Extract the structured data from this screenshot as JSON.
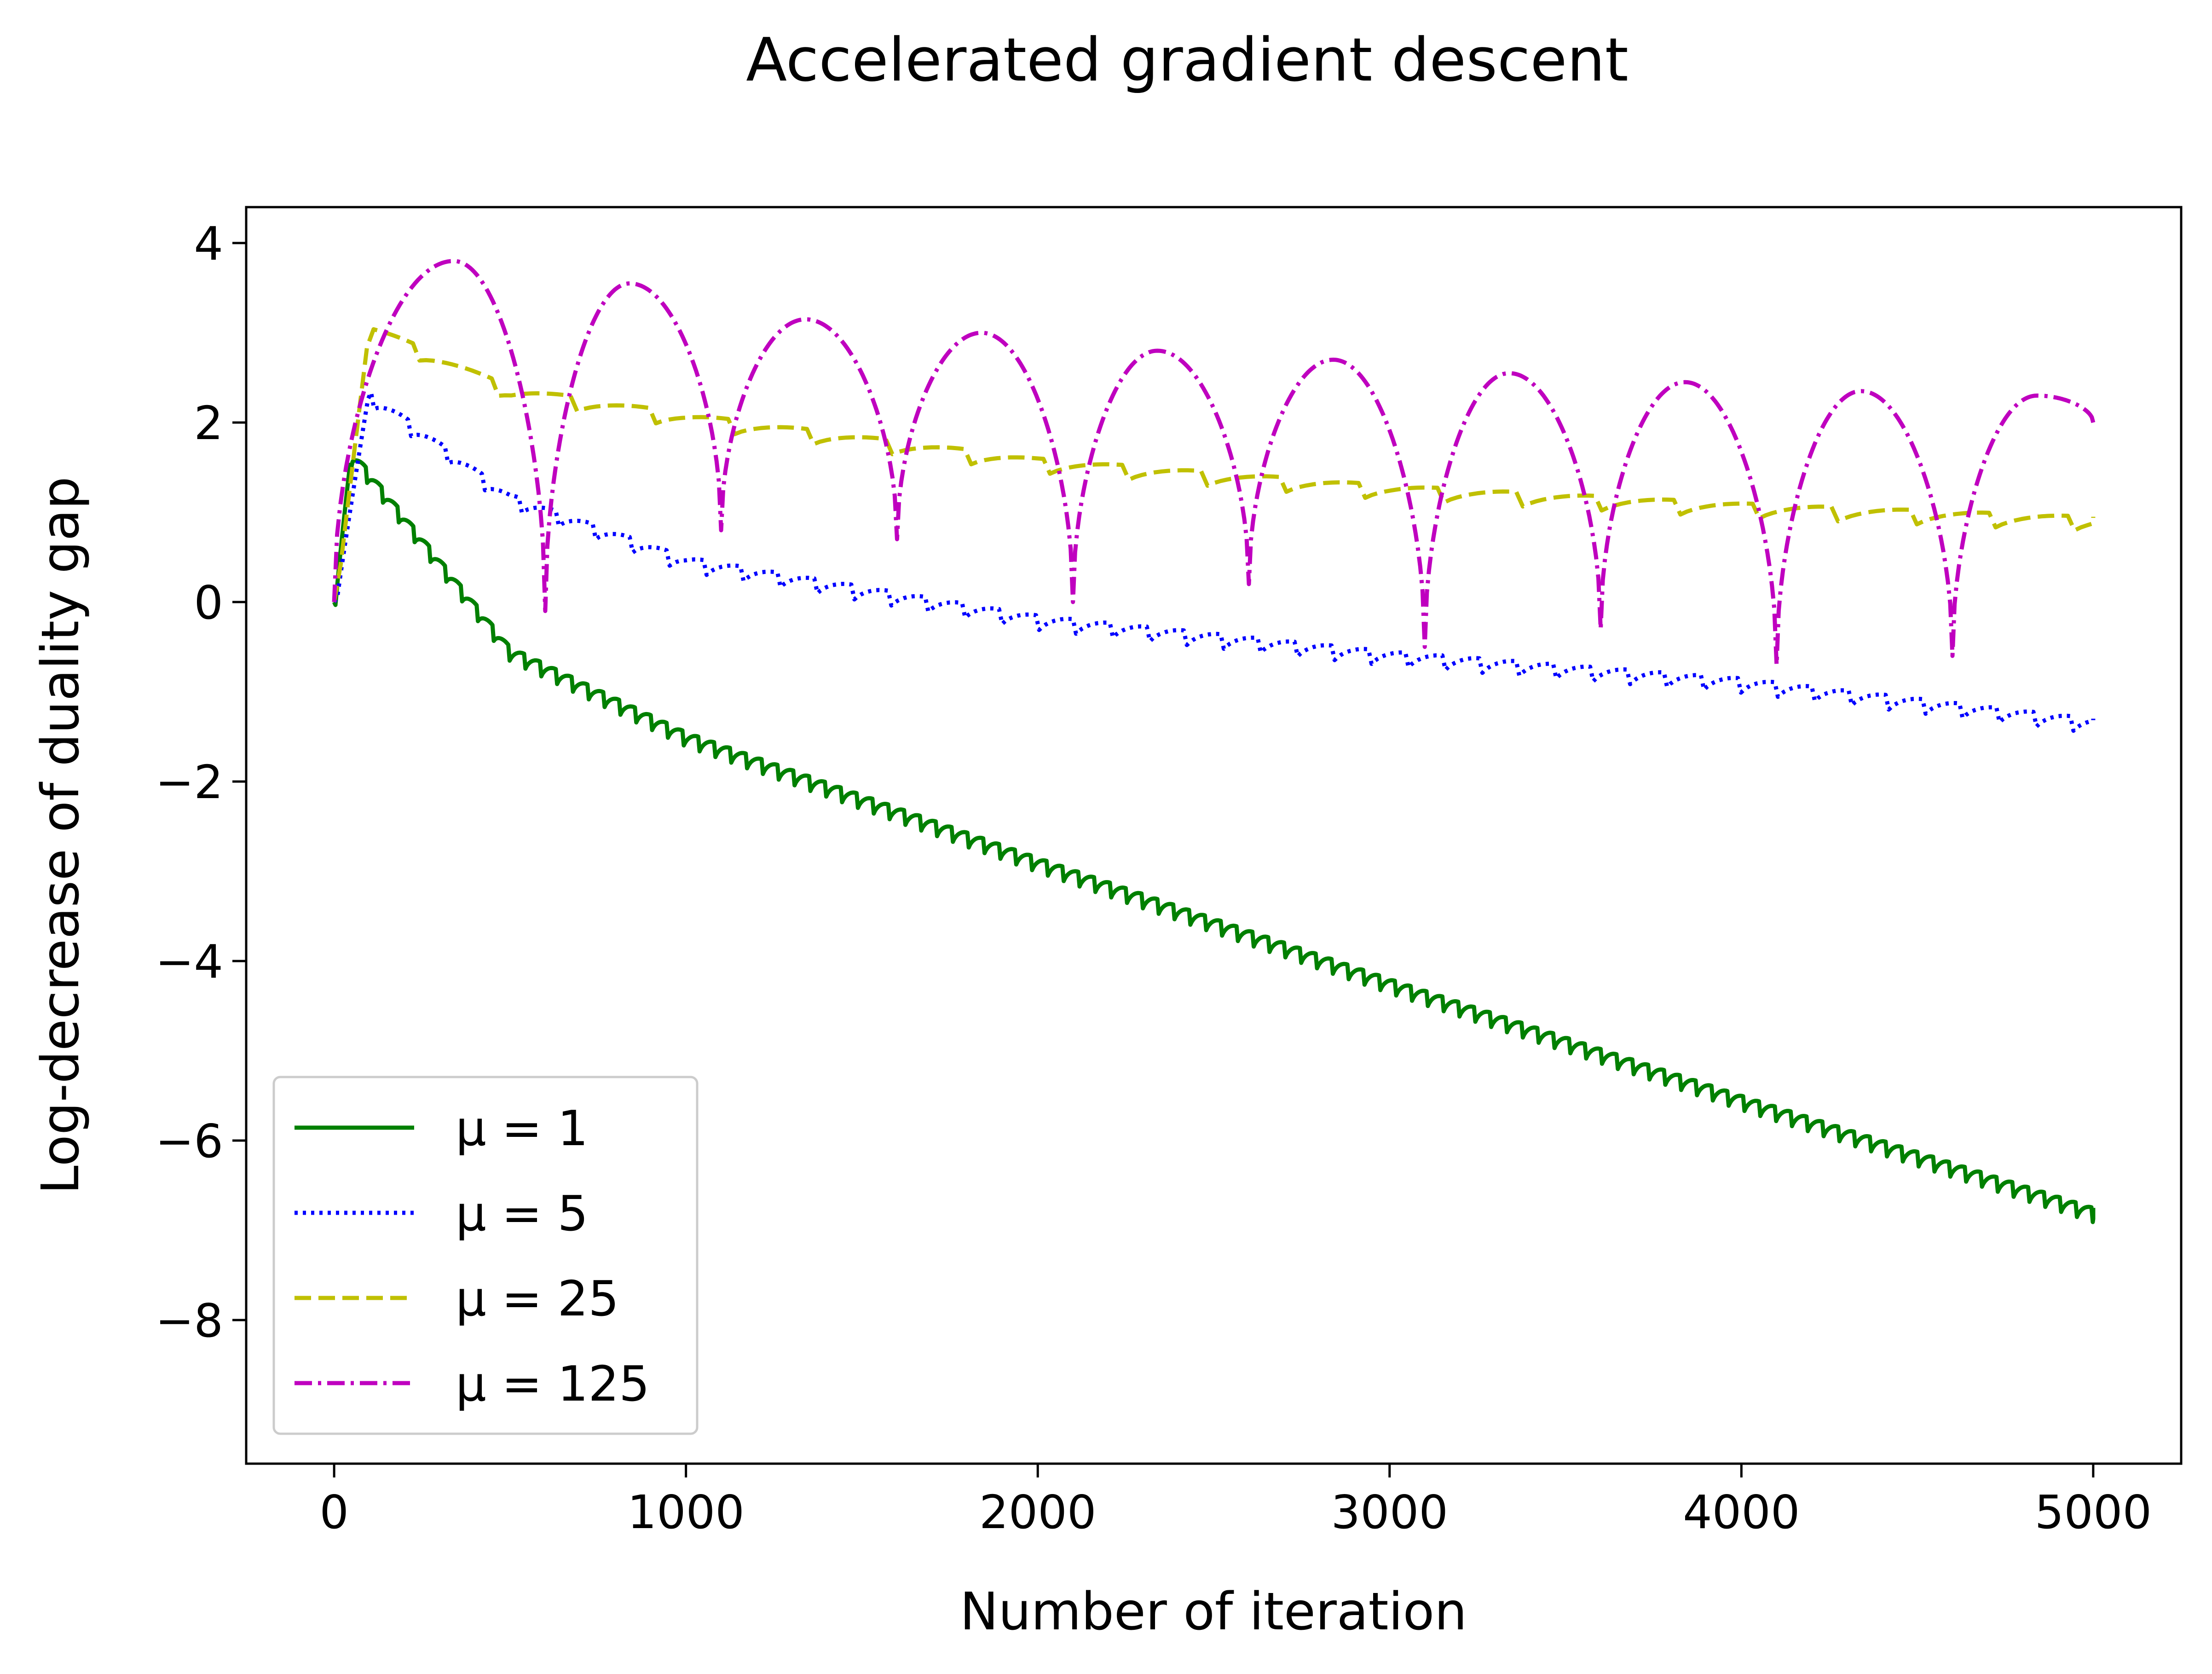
{
  "chart_data": {
    "type": "line",
    "title": "Accelerated gradient descent",
    "xlabel": "Number of iteration",
    "ylabel": "Log-decrease of duality gap",
    "xlim": [
      -250,
      5250
    ],
    "ylim": [
      -9.6,
      4.4
    ],
    "xticks": [
      0,
      1000,
      2000,
      3000,
      4000,
      5000
    ],
    "xtick_labels": [
      "0",
      "1000",
      "2000",
      "3000",
      "4000",
      "5000"
    ],
    "yticks": [
      4,
      2,
      0,
      -2,
      -4,
      -6,
      -8
    ],
    "ytick_labels": [
      "4",
      "2",
      "0",
      "−2",
      "−4",
      "−6",
      "−8"
    ],
    "grid": false,
    "legend_position": "lower-left",
    "series": [
      {
        "name": "μ = 1",
        "legend_label": "μ = 1",
        "color": "#008000",
        "style": "solid",
        "description": "oscillating decay, period ~45 iterations",
        "envelope_x": [
          0,
          50,
          500,
          1000,
          2000,
          3000,
          4000,
          5000
        ],
        "envelope_y": [
          0.0,
          1.7,
          -0.5,
          -1.45,
          -2.85,
          -4.2,
          -5.5,
          -6.75
        ],
        "dip_depth": 1.8,
        "period": 45
      },
      {
        "name": "μ = 5",
        "legend_label": "μ = 5",
        "color": "#0000ff",
        "style": "dotted",
        "envelope_x": [
          0,
          100,
          500,
          1000,
          2000,
          3000,
          4000,
          5000
        ],
        "envelope_y": [
          0.0,
          2.35,
          1.2,
          0.5,
          -0.15,
          -0.55,
          -0.85,
          -1.3
        ],
        "dip_depth": 2.2,
        "period": 105
      },
      {
        "name": "μ = 25",
        "legend_label": "μ = 25",
        "color": "#c0c000",
        "style": "dashed",
        "envelope_x": [
          0,
          100,
          500,
          1000,
          2000,
          3000,
          4000,
          5000
        ],
        "envelope_y": [
          0.0,
          3.1,
          2.4,
          2.1,
          1.6,
          1.3,
          1.1,
          0.95
        ],
        "dip_depth": 2.4,
        "period": 224
      },
      {
        "name": "μ = 125",
        "legend_label": "μ = 125",
        "color": "#bf00bf",
        "style": "dashdot",
        "arch_x": [
          0,
          340,
          600,
          840,
          1100,
          1340,
          1600,
          1840,
          2100,
          2340,
          2600,
          2840,
          3100,
          3340,
          3600,
          3840,
          4100,
          4340,
          4600,
          4840,
          5000
        ],
        "arch_y": [
          0.0,
          3.8,
          -0.1,
          3.55,
          0.8,
          3.15,
          0.7,
          3.0,
          0.0,
          2.8,
          0.2,
          2.7,
          -0.5,
          2.55,
          -0.3,
          2.45,
          -0.7,
          2.35,
          -0.6,
          2.3,
          2.0
        ]
      }
    ]
  }
}
